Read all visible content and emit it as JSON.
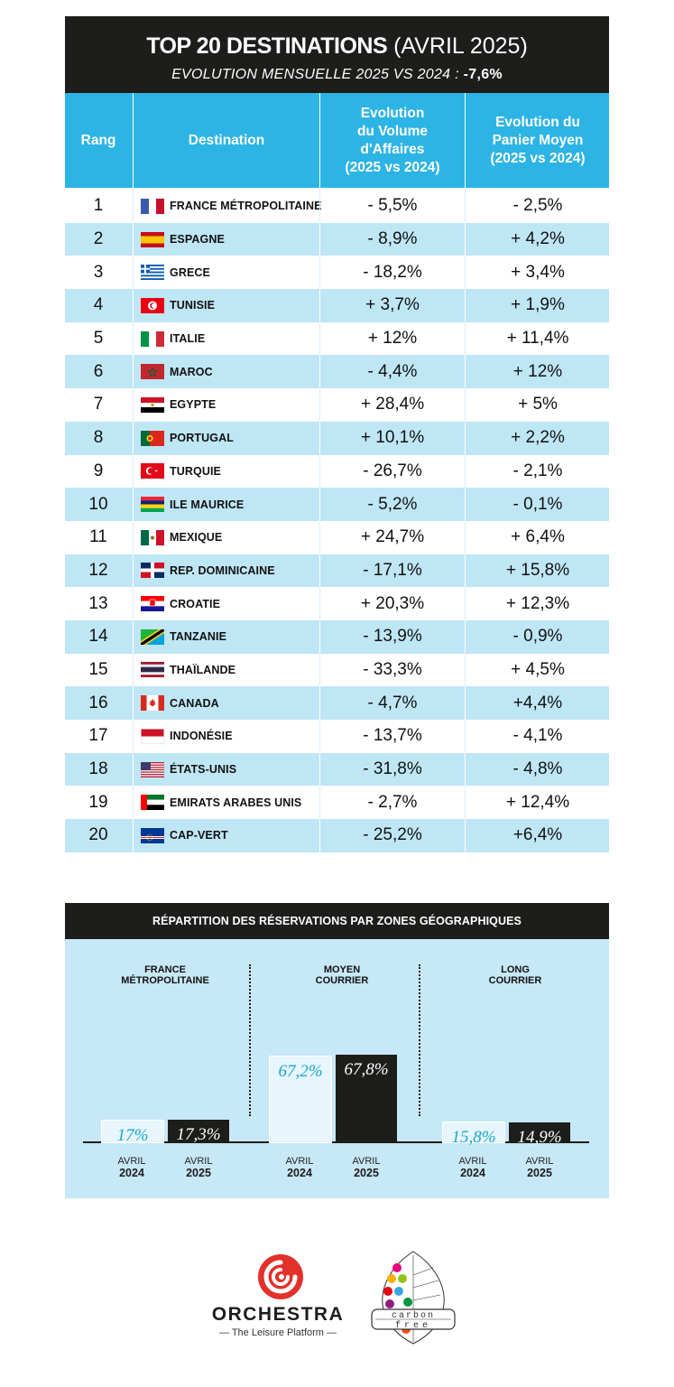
{
  "header": {
    "title_bold": "TOP 20 DESTINATIONS",
    "title_light": "(AVRIL 2025)",
    "subtitle": "EVOLUTION MENSUELLE 2025 VS 2024 :",
    "subtitle_value": "-7,6%"
  },
  "columns": {
    "rang": "Rang",
    "destination": "Destination",
    "volume": "Evolution\ndu Volume\nd'Affaires\n(2025 vs 2024)",
    "panier": "Evolution du\nPanier Moyen\n(2025 vs 2024)"
  },
  "rows": [
    {
      "rank": "1",
      "name": "FRANCE MÉTROPOLITAINE",
      "volume": "- 5,5%",
      "panier": "- 2,5%",
      "flag": "france-flag-icon"
    },
    {
      "rank": "2",
      "name": "ESPAGNE",
      "volume": "- 8,9%",
      "panier": "+ 4,2%",
      "flag": "spain-flag-icon"
    },
    {
      "rank": "3",
      "name": "GRECE",
      "volume": "- 18,2%",
      "panier": "+ 3,4%",
      "flag": "greece-flag-icon"
    },
    {
      "rank": "4",
      "name": "TUNISIE",
      "volume": "+ 3,7%",
      "panier": "+ 1,9%",
      "flag": "tunisia-flag-icon"
    },
    {
      "rank": "5",
      "name": "ITALIE",
      "volume": "+ 12%",
      "panier": "+ 11,4%",
      "flag": "italy-flag-icon"
    },
    {
      "rank": "6",
      "name": "MAROC",
      "volume": "- 4,4%",
      "panier": "+ 12%",
      "flag": "morocco-flag-icon"
    },
    {
      "rank": "7",
      "name": "EGYPTE",
      "volume": "+ 28,4%",
      "panier": "+ 5%",
      "flag": "egypt-flag-icon"
    },
    {
      "rank": "8",
      "name": "PORTUGAL",
      "volume": "+ 10,1%",
      "panier": "+ 2,2%",
      "flag": "portugal-flag-icon"
    },
    {
      "rank": "9",
      "name": "TURQUIE",
      "volume": "- 26,7%",
      "panier": "- 2,1%",
      "flag": "turkey-flag-icon"
    },
    {
      "rank": "10",
      "name": "ILE MAURICE",
      "volume": "- 5,2%",
      "panier": "- 0,1%",
      "flag": "mauritius-flag-icon"
    },
    {
      "rank": "11",
      "name": "MEXIQUE",
      "volume": "+ 24,7%",
      "panier": "+ 6,4%",
      "flag": "mexico-flag-icon"
    },
    {
      "rank": "12",
      "name": "REP. DOMINICAINE",
      "volume": "- 17,1%",
      "panier": "+ 15,8%",
      "flag": "dominican-republic-flag-icon"
    },
    {
      "rank": "13",
      "name": "CROATIE",
      "volume": "+ 20,3%",
      "panier": "+ 12,3%",
      "flag": "croatia-flag-icon"
    },
    {
      "rank": "14",
      "name": "TANZANIE",
      "volume": "- 13,9%",
      "panier": "- 0,9%",
      "flag": "tanzania-flag-icon"
    },
    {
      "rank": "15",
      "name": "THAÏLANDE",
      "volume": "- 33,3%",
      "panier": "+ 4,5%",
      "flag": "thailand-flag-icon"
    },
    {
      "rank": "16",
      "name": "CANADA",
      "volume": "- 4,7%",
      "panier": "+4,4%",
      "flag": "canada-flag-icon"
    },
    {
      "rank": "17",
      "name": "INDONÉSIE",
      "volume": "- 13,7%",
      "panier": "- 4,1%",
      "flag": "indonesia-flag-icon"
    },
    {
      "rank": "18",
      "name": "ÉTATS-UNIS",
      "volume": "- 31,8%",
      "panier": "- 4,8%",
      "flag": "usa-flag-icon"
    },
    {
      "rank": "19",
      "name": "EMIRATS ARABES UNIS",
      "volume": "- 2,7%",
      "panier": "+ 12,4%",
      "flag": "uae-flag-icon"
    },
    {
      "rank": "20",
      "name": "CAP-VERT",
      "volume": "- 25,2%",
      "panier": "+6,4%",
      "flag": "cape-verde-flag-icon"
    }
  ],
  "zones": {
    "title": "RÉPARTITION DES RÉSERVATIONS PAR ZONES GÉOGRAPHIQUES",
    "groups": [
      {
        "name": "FRANCE\nMÉTROPOLITAINE"
      },
      {
        "name": "MOYEN\nCOURRIER"
      },
      {
        "name": "LONG\nCOURRIER"
      }
    ],
    "period_top": "AVRIL",
    "year_2024": "2024",
    "year_2025": "2025"
  },
  "chart_data": {
    "type": "bar",
    "title": "RÉPARTITION DES RÉSERVATIONS PAR ZONES GÉOGRAPHIQUES",
    "categories": [
      "FRANCE MÉTROPOLITAINE",
      "MOYEN COURRIER",
      "LONG COURRIER"
    ],
    "series": [
      {
        "name": "AVRIL 2024",
        "values": [
          17,
          67.2,
          15.8
        ],
        "labels": [
          "17%",
          "67,2%",
          "15,8%"
        ],
        "color": "#e6f6fc"
      },
      {
        "name": "AVRIL 2025",
        "values": [
          17.3,
          67.8,
          14.9
        ],
        "labels": [
          "17,3%",
          "67,8%",
          "14,9%"
        ],
        "color": "#1d1d1b"
      }
    ],
    "ylim": [
      0,
      100
    ]
  },
  "logos": {
    "orchestra_name": "ORCHESTRA",
    "orchestra_tagline": "— The Leisure Platform —",
    "carbon_top": "carbon",
    "carbon_bottom": "free"
  },
  "colors": {
    "header_bg": "#1d1d1b",
    "column_header_bg": "#2cb4e4",
    "row_alt_bg": "#bfe6f5",
    "panel_bg": "#c7e8f6",
    "accent_2024": "#1aa6cf",
    "orchestra_red": "#e2302a"
  }
}
